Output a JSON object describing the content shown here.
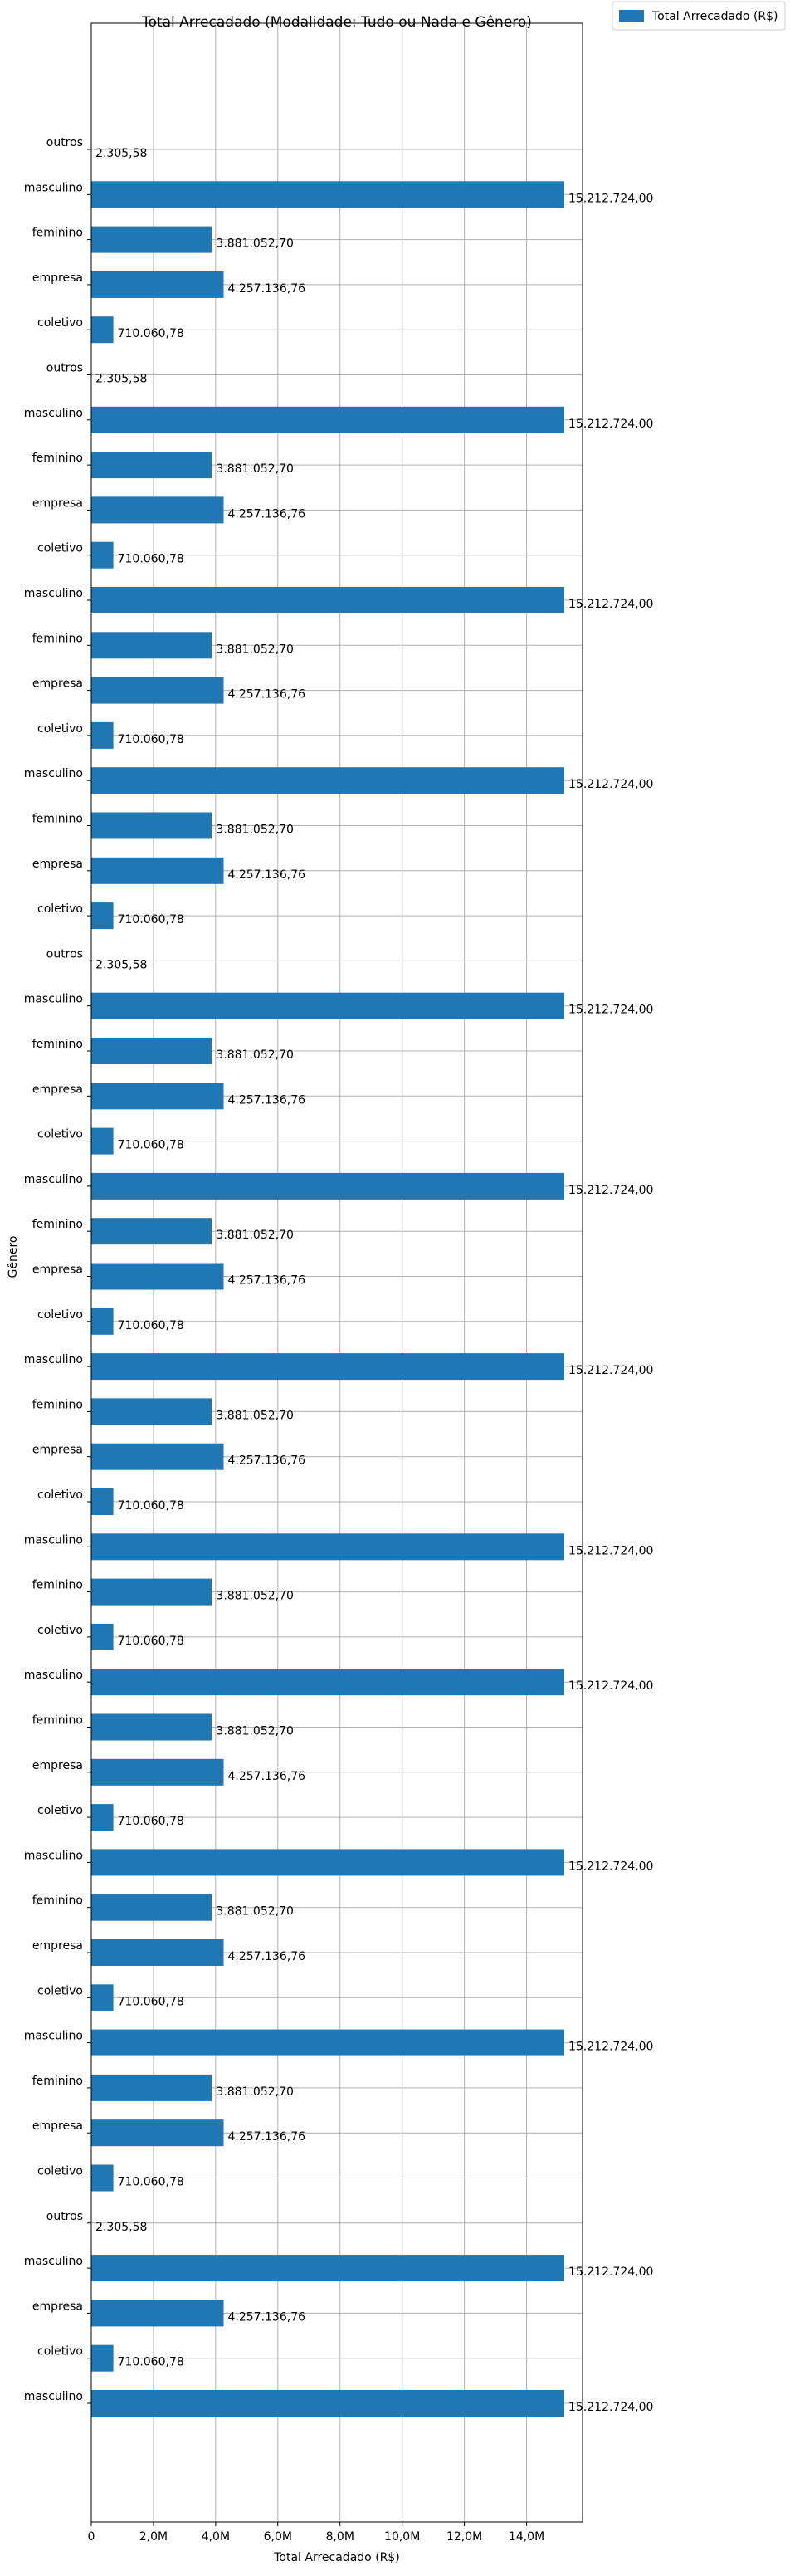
{
  "chart_data": {
    "type": "bar",
    "orientation": "horizontal",
    "title": "Total Arrecadado (Modalidade: Tudo ou Nada e Gênero)",
    "xlabel": "Total Arrecadado (R$)",
    "ylabel": "Gênero",
    "xlim": [
      0,
      15800000
    ],
    "x_ticks": [
      0,
      2000000,
      4000000,
      6000000,
      8000000,
      10000000,
      12000000,
      14000000
    ],
    "x_tick_labels": [
      "0",
      "2,0M",
      "4,0M",
      "6,0M",
      "8,0M",
      "10,0M",
      "12,0M",
      "14,0M"
    ],
    "grid": true,
    "legend_position": "outside top-right",
    "bar_color": "#1f77b4",
    "series": [
      {
        "name": "Total Arrecadado (R$)",
        "color": "#1f77b4",
        "categories": [
          "outros",
          "masculino",
          "feminino",
          "empresa",
          "coletivo",
          "outros",
          "masculino",
          "feminino",
          "empresa",
          "coletivo",
          "masculino",
          "feminino",
          "empresa",
          "coletivo",
          "masculino",
          "feminino",
          "empresa",
          "coletivo",
          "outros",
          "masculino",
          "feminino",
          "empresa",
          "coletivo",
          "masculino",
          "feminino",
          "empresa",
          "coletivo",
          "masculino",
          "feminino",
          "empresa",
          "coletivo",
          "masculino",
          "feminino",
          "coletivo",
          "masculino",
          "feminino",
          "empresa",
          "coletivo",
          "masculino",
          "feminino",
          "empresa",
          "coletivo",
          "masculino",
          "feminino",
          "empresa",
          "coletivo",
          "outros",
          "masculino",
          "empresa",
          "coletivo",
          "masculino"
        ],
        "values": [
          2305.58,
          15212724.0,
          3881052.7,
          4257136.76,
          710060.78,
          2305.58,
          15212724.0,
          3881052.7,
          4257136.76,
          710060.78,
          15212724.0,
          3881052.7,
          4257136.76,
          710060.78,
          15212724.0,
          3881052.7,
          4257136.76,
          710060.78,
          2305.58,
          15212724.0,
          3881052.7,
          4257136.76,
          710060.78,
          15212724.0,
          3881052.7,
          4257136.76,
          710060.78,
          15212724.0,
          3881052.7,
          4257136.76,
          710060.78,
          15212724.0,
          3881052.7,
          710060.78,
          15212724.0,
          3881052.7,
          4257136.76,
          710060.78,
          15212724.0,
          3881052.7,
          4257136.76,
          710060.78,
          15212724.0,
          3881052.7,
          4257136.76,
          710060.78,
          2305.58,
          15212724.0,
          4257136.76,
          710060.78,
          15212724.0
        ],
        "value_labels": [
          "2.305,58",
          "15.212.724,00",
          "3.881.052,70",
          "4.257.136,76",
          "710.060,78",
          "2.305,58",
          "15.212.724,00",
          "3.881.052,70",
          "4.257.136,76",
          "710.060,78",
          "15.212.724,00",
          "3.881.052,70",
          "4.257.136,76",
          "710.060,78",
          "15.212.724,00",
          "3.881.052,70",
          "4.257.136,76",
          "710.060,78",
          "2.305,58",
          "15.212.724,00",
          "3.881.052,70",
          "4.257.136,76",
          "710.060,78",
          "15.212.724,00",
          "3.881.052,70",
          "4.257.136,76",
          "710.060,78",
          "15.212.724,00",
          "3.881.052,70",
          "4.257.136,76",
          "710.060,78",
          "15.212.724,00",
          "3.881.052,70",
          "710.060,78",
          "15.212.724,00",
          "3.881.052,70",
          "4.257.136,76",
          "710.060,78",
          "15.212.724,00",
          "3.881.052,70",
          "4.257.136,76",
          "710.060,78",
          "15.212.724,00",
          "3.881.052,70",
          "4.257.136,76",
          "710.060,78",
          "2.305,58",
          "15.212.724,00",
          "4.257.136,76",
          "710.060,78",
          "15.212.724,00"
        ]
      }
    ]
  }
}
